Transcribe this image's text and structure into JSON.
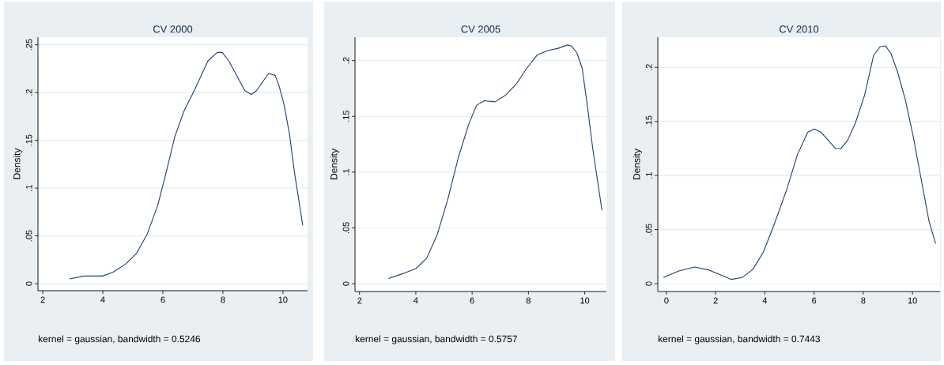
{
  "chart_data": [
    {
      "type": "line",
      "title": "CV 2000",
      "ylabel": "Density",
      "annotations": [
        "kernel = gaussian, bandwidth = 0.5246"
      ],
      "grid": "y",
      "marker": "none",
      "line_style": "solid",
      "xlim": [
        1.84,
        10.82
      ],
      "ylim": [
        -0.0074,
        0.258
      ],
      "xticks": [
        2,
        4,
        6,
        8,
        10
      ],
      "yticks": [
        {
          "value": 0,
          "label": "0"
        },
        {
          "value": 0.05,
          "label": ".05"
        },
        {
          "value": 0.1,
          "label": ".1"
        },
        {
          "value": 0.15,
          "label": ".15"
        },
        {
          "value": 0.2,
          "label": ".2"
        },
        {
          "value": 0.25,
          "label": ".25"
        }
      ],
      "series": [
        {
          "color": "#1f3f6e",
          "x": [
            2.89,
            3.38,
            3.99,
            4.34,
            4.78,
            5.13,
            5.48,
            5.83,
            6.1,
            6.4,
            6.71,
            7.06,
            7.5,
            7.81,
            7.98,
            8.2,
            8.73,
            8.95,
            9.12,
            9.52,
            9.74,
            9.87,
            10.04,
            10.22,
            10.39,
            10.66
          ],
          "values": [
            0.005,
            0.008,
            0.008,
            0.012,
            0.021,
            0.032,
            0.052,
            0.082,
            0.115,
            0.154,
            0.181,
            0.203,
            0.233,
            0.242,
            0.242,
            0.233,
            0.202,
            0.198,
            0.202,
            0.22,
            0.218,
            0.207,
            0.187,
            0.156,
            0.115,
            0.061
          ]
        }
      ]
    },
    {
      "type": "line",
      "title": "CV 2005",
      "ylabel": "Density",
      "annotations": [
        "kernel = gaussian, bandwidth = 0.5757"
      ],
      "grid": "y",
      "marker": "none",
      "line_style": "solid",
      "xlim": [
        1.84,
        10.77
      ],
      "ylim": [
        -0.007,
        0.221
      ],
      "xticks": [
        2,
        4,
        6,
        8,
        10
      ],
      "yticks": [
        {
          "value": 0,
          "label": "0"
        },
        {
          "value": 0.05,
          "label": ".05"
        },
        {
          "value": 0.1,
          "label": ".1"
        },
        {
          "value": 0.15,
          "label": ".15"
        },
        {
          "value": 0.2,
          "label": ".2"
        }
      ],
      "series": [
        {
          "color": "#1f3f6e",
          "x": [
            3.03,
            3.54,
            4.01,
            4.39,
            4.76,
            5.13,
            5.51,
            5.88,
            6.16,
            6.44,
            6.81,
            7.19,
            7.57,
            7.94,
            8.31,
            8.69,
            9.06,
            9.39,
            9.53,
            9.72,
            9.91,
            10.09,
            10.28,
            10.61
          ],
          "values": [
            0.0047,
            0.009,
            0.0137,
            0.023,
            0.044,
            0.075,
            0.113,
            0.143,
            0.16,
            0.164,
            0.163,
            0.169,
            0.179,
            0.193,
            0.205,
            0.209,
            0.211,
            0.214,
            0.213,
            0.207,
            0.193,
            0.16,
            0.122,
            0.066
          ]
        }
      ]
    },
    {
      "type": "line",
      "title": "CV 2010",
      "ylabel": "Density",
      "annotations": [
        "kernel = gaussian, bandwidth = 0.7443"
      ],
      "grid": "y",
      "marker": "none",
      "line_style": "solid",
      "xlim": [
        -0.35,
        11.12
      ],
      "ylim": [
        -0.0073,
        0.228
      ],
      "xticks": [
        0,
        2,
        4,
        6,
        8,
        10
      ],
      "yticks": [
        {
          "value": 0,
          "label": "0"
        },
        {
          "value": 0.05,
          "label": ".05"
        },
        {
          "value": 0.1,
          "label": ".1"
        },
        {
          "value": 0.15,
          "label": ".15"
        },
        {
          "value": 0.2,
          "label": ".2"
        }
      ],
      "series": [
        {
          "color": "#1f3f6e",
          "x": [
            -0.12,
            0.5,
            1.14,
            1.68,
            2.21,
            2.64,
            3.07,
            3.5,
            3.93,
            4.35,
            4.89,
            5.32,
            5.74,
            6.01,
            6.28,
            6.6,
            6.87,
            7.09,
            7.35,
            7.67,
            8.05,
            8.42,
            8.68,
            8.9,
            9.12,
            9.39,
            9.71,
            10.03,
            10.35,
            10.67,
            10.94
          ],
          "values": [
            0.0056,
            0.0117,
            0.0153,
            0.0129,
            0.008,
            0.0039,
            0.0056,
            0.0129,
            0.0287,
            0.053,
            0.087,
            0.119,
            0.14,
            0.143,
            0.14,
            0.132,
            0.125,
            0.125,
            0.132,
            0.148,
            0.174,
            0.211,
            0.219,
            0.22,
            0.213,
            0.196,
            0.17,
            0.136,
            0.097,
            0.058,
            0.037
          ]
        }
      ]
    }
  ]
}
